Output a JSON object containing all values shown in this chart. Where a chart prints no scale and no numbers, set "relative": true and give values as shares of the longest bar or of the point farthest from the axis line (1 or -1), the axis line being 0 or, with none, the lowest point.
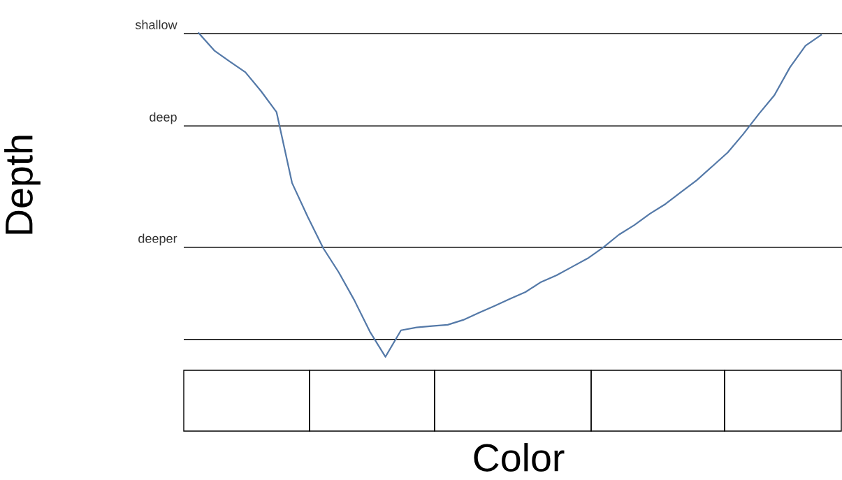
{
  "chart_data": {
    "type": "line",
    "relative": true,
    "xlabel": "Color",
    "ylabel": "Depth",
    "legend": false,
    "categories": [
      null,
      null,
      null,
      null,
      null,
      null,
      null,
      null,
      null,
      null,
      null,
      null,
      null,
      null,
      null,
      null,
      null,
      null,
      null,
      null,
      null,
      null,
      null,
      null,
      null,
      null,
      null,
      null,
      null,
      null,
      null,
      null,
      null,
      null,
      null,
      null,
      null,
      null,
      null,
      null,
      null
    ],
    "series": [
      {
        "color": "#5479a8",
        "values": [
          1.0,
          0.946,
          0.912,
          0.879,
          0.821,
          0.756,
          0.537,
          0.433,
          0.336,
          0.261,
          0.175,
          0.078,
          0.0,
          0.082,
          0.091,
          0.095,
          0.099,
          0.114,
          0.136,
          0.157,
          0.179,
          0.2,
          0.231,
          0.252,
          0.278,
          0.304,
          0.338,
          0.377,
          0.407,
          0.442,
          0.472,
          0.509,
          0.545,
          0.588,
          0.631,
          0.688,
          0.75,
          0.808,
          0.894,
          0.961,
          0.994
        ]
      }
    ],
    "ref_lines": [
      {
        "axis": "y",
        "value": 0.998,
        "label": "shallow",
        "color": "#000000"
      },
      {
        "axis": "y",
        "value": 0.713,
        "label": "deep",
        "color": "#000000"
      },
      {
        "axis": "y",
        "value": 0.338,
        "label": "deeper",
        "color": "#000000"
      },
      {
        "axis": "y",
        "value": 0.054,
        "label": null,
        "color": "#000000"
      }
    ]
  }
}
